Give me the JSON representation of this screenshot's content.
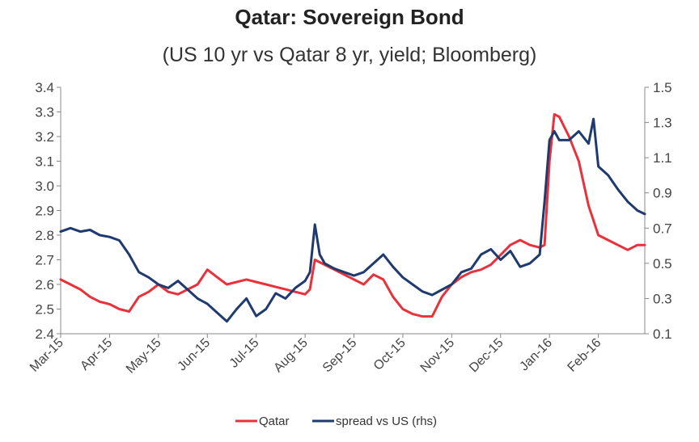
{
  "chart_data": {
    "type": "line",
    "title": "Qatar: Sovereign Bond",
    "subtitle": "(US 10 yr vs Qatar 8 yr, yield; Bloomberg)",
    "categories": [
      "Mar-15",
      "Apr-15",
      "May-15",
      "Jun-15",
      "Jul-15",
      "Aug-15",
      "Sep-15",
      "Oct-15",
      "Nov-15",
      "Dec-15",
      "Jan-16",
      "Feb-16"
    ],
    "x_range": [
      0,
      11.95
    ],
    "left_axis": {
      "ylim": [
        2.4,
        3.4
      ],
      "ticks": [
        "2.4",
        "2.5",
        "2.6",
        "2.7",
        "2.8",
        "2.9",
        "3.0",
        "3.1",
        "3.2",
        "3.3",
        "3.4"
      ]
    },
    "right_axis": {
      "ylim": [
        0.1,
        1.5
      ],
      "ticks": [
        "0.1",
        "0.3",
        "0.5",
        "0.7",
        "0.9",
        "1.1",
        "1.3",
        "1.5"
      ]
    },
    "series": [
      {
        "name": "Qatar",
        "axis": "left",
        "color": "#e8313a",
        "x": [
          0,
          0.2,
          0.4,
          0.6,
          0.8,
          1.0,
          1.2,
          1.4,
          1.6,
          1.8,
          2.0,
          2.2,
          2.4,
          2.6,
          2.8,
          3.0,
          3.2,
          3.4,
          3.6,
          3.8,
          4.0,
          4.2,
          4.4,
          4.6,
          4.8,
          5.0,
          5.1,
          5.2,
          5.4,
          5.6,
          5.8,
          6.0,
          6.2,
          6.4,
          6.6,
          6.8,
          7.0,
          7.2,
          7.4,
          7.6,
          7.8,
          8.0,
          8.2,
          8.4,
          8.6,
          8.8,
          9.0,
          9.2,
          9.4,
          9.6,
          9.8,
          9.9,
          10.0,
          10.1,
          10.2,
          10.4,
          10.6,
          10.8,
          11.0,
          11.2,
          11.4,
          11.6,
          11.8,
          11.95
        ],
        "values": [
          2.62,
          2.6,
          2.58,
          2.55,
          2.53,
          2.52,
          2.5,
          2.49,
          2.55,
          2.57,
          2.6,
          2.57,
          2.56,
          2.58,
          2.6,
          2.66,
          2.63,
          2.6,
          2.61,
          2.62,
          2.61,
          2.6,
          2.59,
          2.58,
          2.57,
          2.56,
          2.58,
          2.7,
          2.68,
          2.66,
          2.64,
          2.62,
          2.6,
          2.64,
          2.62,
          2.55,
          2.5,
          2.48,
          2.47,
          2.47,
          2.55,
          2.6,
          2.63,
          2.65,
          2.66,
          2.68,
          2.72,
          2.76,
          2.78,
          2.76,
          2.75,
          2.76,
          3.1,
          3.29,
          3.28,
          3.2,
          3.1,
          2.92,
          2.8,
          2.78,
          2.76,
          2.74,
          2.76,
          2.76
        ]
      },
      {
        "name": "spread vs US (rhs)",
        "axis": "right",
        "color": "#1f3a6e",
        "x": [
          0,
          0.2,
          0.4,
          0.6,
          0.8,
          1.0,
          1.2,
          1.4,
          1.6,
          1.8,
          2.0,
          2.2,
          2.4,
          2.6,
          2.8,
          3.0,
          3.2,
          3.4,
          3.6,
          3.8,
          4.0,
          4.2,
          4.4,
          4.6,
          4.8,
          5.0,
          5.1,
          5.2,
          5.3,
          5.4,
          5.6,
          5.8,
          6.0,
          6.2,
          6.4,
          6.6,
          6.8,
          7.0,
          7.2,
          7.4,
          7.6,
          7.8,
          8.0,
          8.2,
          8.4,
          8.6,
          8.8,
          9.0,
          9.2,
          9.4,
          9.6,
          9.8,
          9.9,
          10.0,
          10.1,
          10.2,
          10.4,
          10.6,
          10.8,
          10.9,
          11.0,
          11.2,
          11.4,
          11.6,
          11.8,
          11.95
        ],
        "values": [
          0.68,
          0.7,
          0.68,
          0.69,
          0.66,
          0.65,
          0.63,
          0.55,
          0.45,
          0.42,
          0.38,
          0.36,
          0.4,
          0.35,
          0.3,
          0.27,
          0.22,
          0.17,
          0.24,
          0.3,
          0.2,
          0.24,
          0.33,
          0.3,
          0.36,
          0.4,
          0.45,
          0.72,
          0.55,
          0.5,
          0.47,
          0.45,
          0.43,
          0.45,
          0.5,
          0.55,
          0.48,
          0.42,
          0.38,
          0.34,
          0.32,
          0.35,
          0.38,
          0.45,
          0.47,
          0.55,
          0.58,
          0.52,
          0.57,
          0.48,
          0.5,
          0.55,
          0.85,
          1.2,
          1.25,
          1.2,
          1.2,
          1.25,
          1.18,
          1.32,
          1.05,
          1.0,
          0.92,
          0.85,
          0.8,
          0.78
        ]
      }
    ],
    "legend": {
      "position": "bottom",
      "items": [
        {
          "label": "Qatar",
          "color": "#e8313a"
        },
        {
          "label": "spread vs US (rhs)",
          "color": "#1f3a6e"
        }
      ]
    }
  }
}
